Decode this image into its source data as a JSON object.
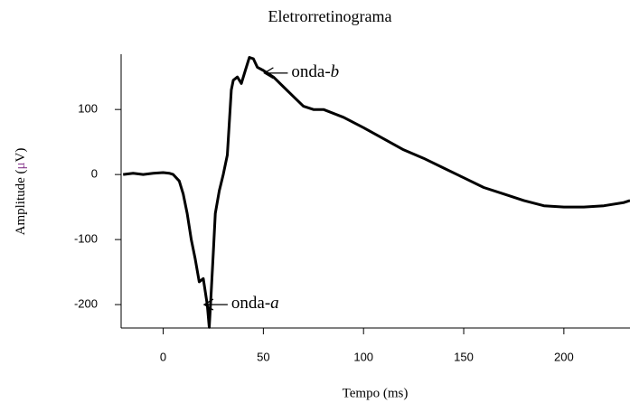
{
  "chart_data": {
    "type": "line",
    "title": "Eletrorretinograma",
    "xlabel": "Tempo (ms)",
    "ylabel": [
      "Amplitude (",
      "μ",
      "V)"
    ],
    "ylabel_accent_color": "#8a3d8f",
    "annotations": [
      {
        "text": [
          "onda-",
          "b"
        ],
        "x": 64,
        "y": 156
      },
      {
        "text": [
          "onda-",
          "a"
        ],
        "x": 34,
        "y": -200
      }
    ],
    "xlim": [
      -21,
      233
    ],
    "ylim": [
      -236,
      185
    ],
    "xticks": [
      0,
      50,
      100,
      150,
      200
    ],
    "yticks": [
      100,
      0,
      -100,
      -200
    ],
    "grid": false,
    "series": [
      {
        "name": null,
        "color": "#000000",
        "x": [
          -20,
          -15,
          -10,
          -5,
          0,
          3,
          5,
          8,
          10,
          12,
          14,
          16,
          18,
          20,
          22,
          23,
          24,
          25,
          26,
          28,
          30,
          32,
          33,
          34,
          35,
          37,
          39,
          41,
          43,
          45,
          47,
          50,
          55,
          60,
          65,
          70,
          75,
          80,
          90,
          100,
          110,
          120,
          130,
          140,
          150,
          160,
          170,
          180,
          190,
          200,
          210,
          220,
          230,
          233
        ],
        "values": [
          0,
          2,
          0,
          2,
          3,
          2,
          0,
          -10,
          -30,
          -60,
          -100,
          -130,
          -165,
          -160,
          -200,
          -235,
          -180,
          -120,
          -60,
          -25,
          0,
          30,
          80,
          130,
          145,
          150,
          140,
          160,
          180,
          178,
          165,
          160,
          150,
          135,
          120,
          105,
          100,
          100,
          88,
          72,
          55,
          38,
          25,
          10,
          -5,
          -20,
          -30,
          -40,
          -48,
          -50,
          -50,
          -48,
          -43,
          -40
        ]
      }
    ]
  }
}
